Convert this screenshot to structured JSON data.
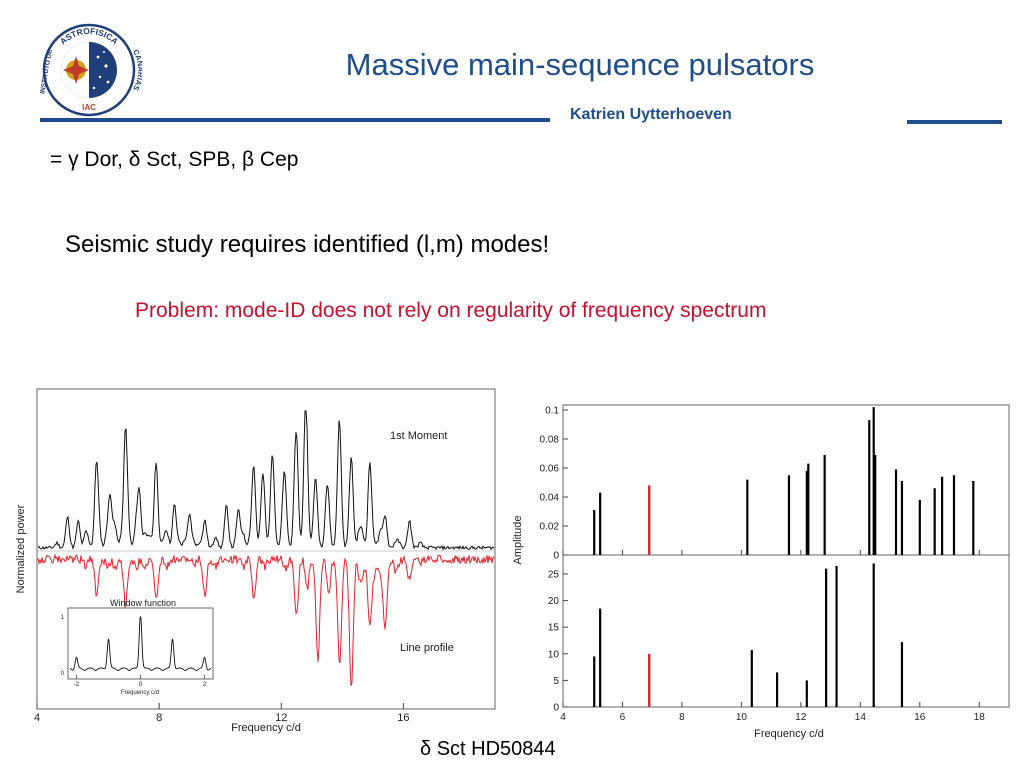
{
  "header": {
    "title": "Massive main-sequence pulsators",
    "author": "Katrien Uytterhoeven",
    "logo": {
      "icon": "iac-seal",
      "text_top": "ASTROFISICA",
      "text_right": "CANARIAS",
      "text_left": "INSTITUTO DE",
      "text_bottom": "IAC"
    }
  },
  "body": {
    "line1": "= γ Dor, δ Sct, SPB, β Cep",
    "line2": "Seismic study requires identified (l,m) modes!",
    "line3": "Problem: mode-ID does not rely on regularity of frequency spectrum",
    "caption": "δ Sct HD50844"
  },
  "colors": {
    "accent": "#1f4e8c",
    "problem": "#c8102e",
    "highlight_bar": "#e01010",
    "profile": "#e8202a"
  },
  "chart_data": [
    {
      "type": "line",
      "xlabel": "Frequency c/d",
      "ylabel": "Normalized power",
      "xlim": [
        4,
        19
      ],
      "x_ticks": [
        "4",
        "8",
        "12",
        "16"
      ],
      "series": [
        {
          "name": "1st Moment",
          "color": "#000000",
          "peaks": [
            [
              5.0,
              0.25
            ],
            [
              5.35,
              0.2
            ],
            [
              5.95,
              0.8
            ],
            [
              6.4,
              0.45
            ],
            [
              6.9,
              1.1
            ],
            [
              7.35,
              0.5
            ],
            [
              7.9,
              0.8
            ],
            [
              8.5,
              0.4
            ],
            [
              9.0,
              0.3
            ],
            [
              9.5,
              0.25
            ],
            [
              10.2,
              0.35
            ],
            [
              10.6,
              0.3
            ],
            [
              11.1,
              0.7
            ],
            [
              11.4,
              0.5
            ],
            [
              11.7,
              0.75
            ],
            [
              12.1,
              0.5
            ],
            [
              12.5,
              0.85
            ],
            [
              12.8,
              1.25
            ],
            [
              13.1,
              0.4
            ],
            [
              13.5,
              0.4
            ],
            [
              13.9,
              1.05
            ],
            [
              14.3,
              0.7
            ],
            [
              14.9,
              0.8
            ],
            [
              15.4,
              0.3
            ],
            [
              16.2,
              0.25
            ]
          ]
        },
        {
          "name": "Line profile",
          "color": "#e8202a",
          "peaks": [
            [
              5.95,
              0.35
            ],
            [
              6.9,
              0.45
            ],
            [
              7.9,
              0.4
            ],
            [
              9.5,
              0.35
            ],
            [
              11.1,
              0.4
            ],
            [
              12.5,
              0.55
            ],
            [
              13.2,
              1.0
            ],
            [
              13.9,
              0.85
            ],
            [
              14.3,
              1.15
            ],
            [
              14.9,
              0.65
            ],
            [
              15.4,
              0.7
            ],
            [
              16.2,
              0.2
            ]
          ]
        }
      ],
      "inset": {
        "title": "Window function",
        "xlabel": "Frequency c/d",
        "xlim": [
          -2.2,
          2.2
        ],
        "x_ticks": [
          "-2",
          "0",
          "2"
        ],
        "y_ticks": [
          "0",
          "1"
        ],
        "peaks": [
          [
            -2,
            0.2
          ],
          [
            -1,
            0.55
          ],
          [
            0,
            1.0
          ],
          [
            1,
            0.55
          ],
          [
            2,
            0.2
          ]
        ]
      }
    },
    {
      "type": "bar",
      "ylabel": "Amplitude",
      "xlabel": "Frequency c/d",
      "xlim": [
        4,
        19
      ],
      "x_ticks": [
        4,
        6,
        8,
        10,
        12,
        14,
        16,
        18
      ],
      "top_panel": {
        "ylim": [
          0,
          0.1
        ],
        "y_ticks": [
          "0",
          "0.02",
          "0.04",
          "0.06",
          "0.08",
          "0.1"
        ],
        "bars": [
          [
            5.05,
            0.031
          ],
          [
            5.25,
            0.043
          ],
          [
            6.9,
            0.048,
            "highlight"
          ],
          [
            10.2,
            0.052
          ],
          [
            11.6,
            0.055
          ],
          [
            12.2,
            0.058
          ],
          [
            12.25,
            0.063
          ],
          [
            12.8,
            0.069
          ],
          [
            14.3,
            0.093
          ],
          [
            14.45,
            0.102
          ],
          [
            14.5,
            0.069
          ],
          [
            15.2,
            0.059
          ],
          [
            15.4,
            0.051
          ],
          [
            16.0,
            0.038
          ],
          [
            16.5,
            0.046
          ],
          [
            16.75,
            0.054
          ],
          [
            17.15,
            0.055
          ],
          [
            17.8,
            0.051
          ]
        ]
      },
      "bottom_panel": {
        "ylim": [
          0,
          28
        ],
        "y_ticks": [
          "0",
          "5",
          "10",
          "15",
          "20",
          "25"
        ],
        "bars": [
          [
            5.05,
            9.5
          ],
          [
            5.25,
            18.5
          ],
          [
            6.9,
            10,
            "highlight"
          ],
          [
            10.35,
            10.7
          ],
          [
            11.2,
            6.5
          ],
          [
            12.2,
            5
          ],
          [
            12.85,
            26
          ],
          [
            13.2,
            26.5
          ],
          [
            14.45,
            27
          ],
          [
            15.4,
            12.2
          ]
        ]
      }
    }
  ]
}
